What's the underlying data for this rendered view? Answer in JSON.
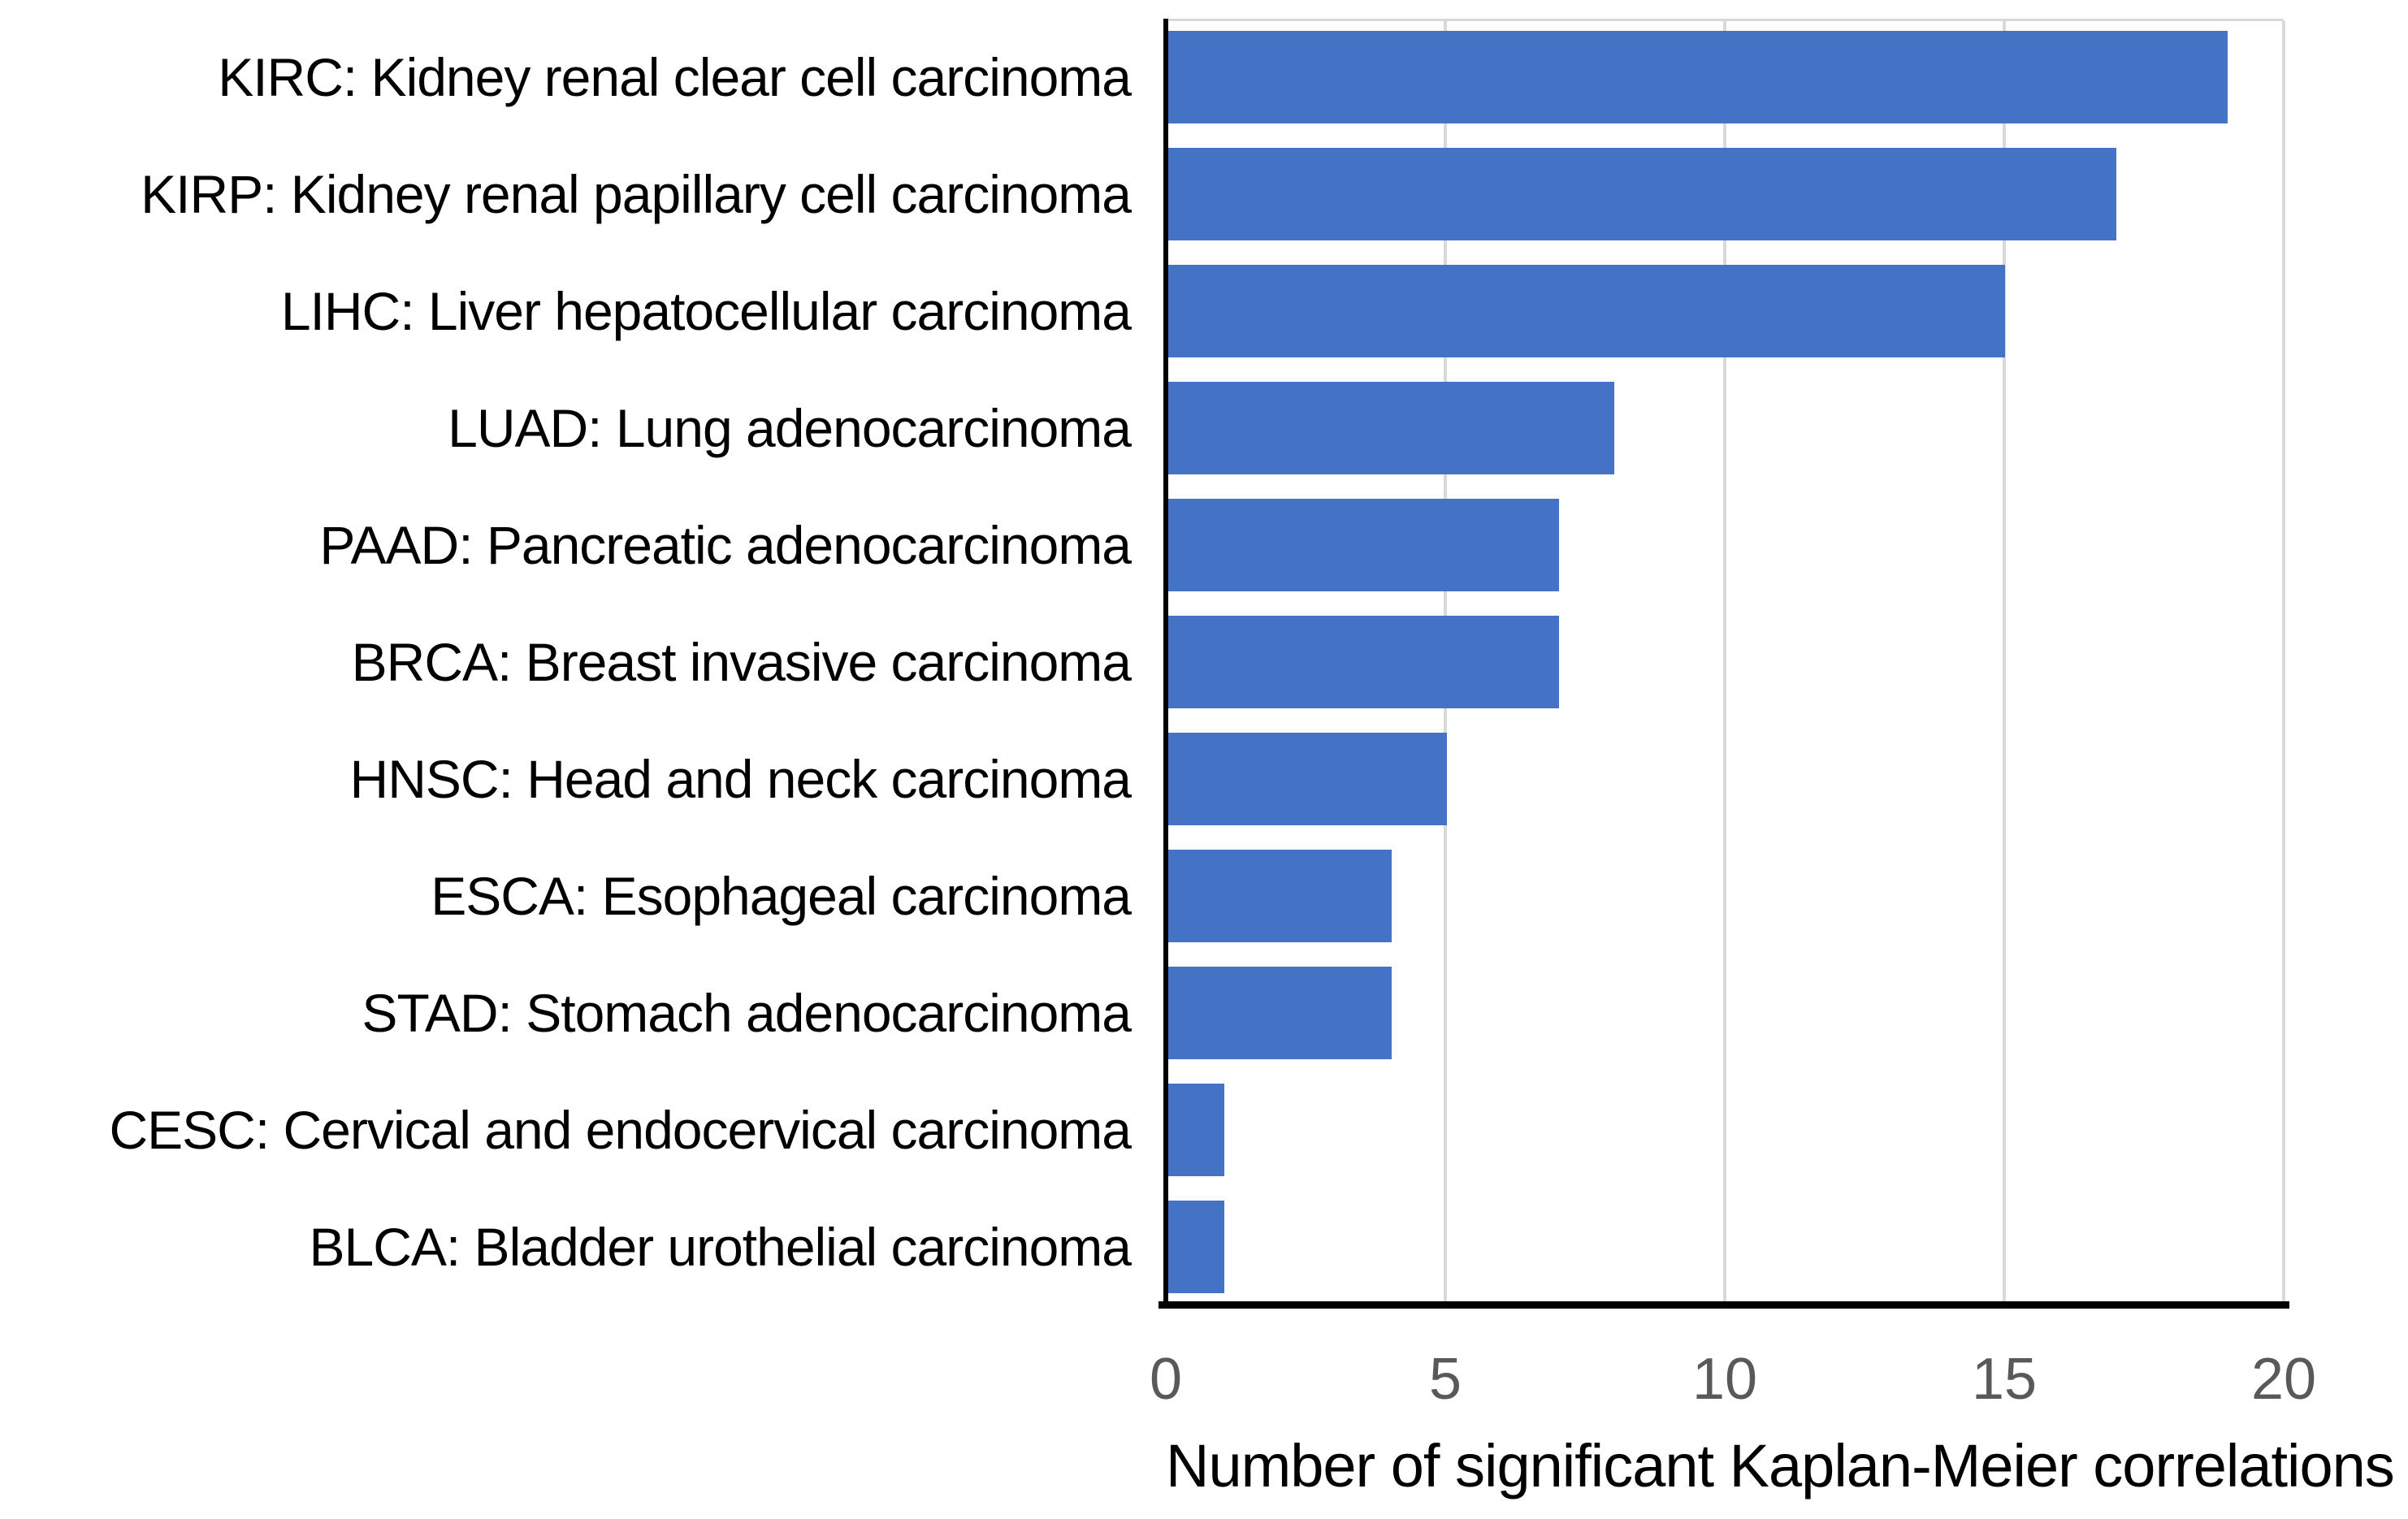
{
  "chart_data": {
    "type": "bar",
    "orientation": "horizontal",
    "title": "",
    "xlabel": "Number of significant Kaplan-Meier correlations",
    "ylabel": "",
    "categories": [
      "KIRC: Kidney renal clear cell carcinoma",
      "KIRP: Kidney renal papillary cell carcinoma",
      "LIHC: Liver hepatocellular carcinoma",
      "LUAD: Lung adenocarcinoma",
      "PAAD: Pancreatic adenocarcinoma",
      "BRCA: Breast invasive carcinoma",
      "HNSC: Head and neck carcinoma",
      "ESCA: Esophageal carcinoma",
      "STAD: Stomach adenocarcinoma",
      "CESC: Cervical and endocervical carcinoma",
      "BLCA: Bladder urothelial carcinoma"
    ],
    "values": [
      19,
      17,
      15,
      8,
      7,
      7,
      5,
      4,
      4,
      1,
      1
    ],
    "xlim": [
      0,
      20
    ],
    "xticks": [
      0,
      5,
      10,
      15,
      20
    ],
    "grid": "vertical-only",
    "legend": "none",
    "colors": {
      "bar": "#4472C4",
      "gridline": "#d9d9d9",
      "axis_line": "#000000",
      "tick_label": "#595959",
      "category_label": "#000000",
      "axis_title": "#000000"
    }
  }
}
